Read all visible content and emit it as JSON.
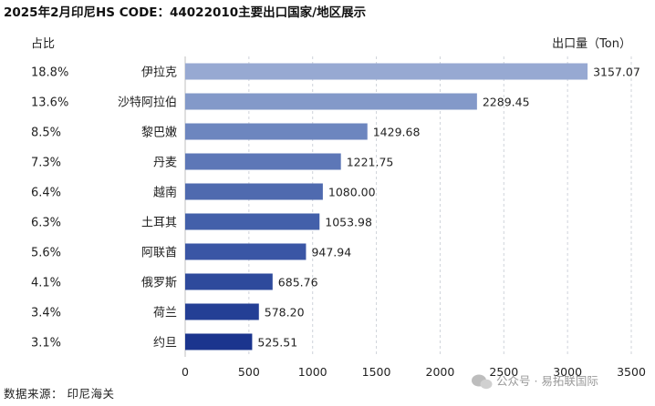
{
  "chart_data": {
    "type": "bar",
    "orientation": "horizontal",
    "title": "2025年2月印尼HS CODE：44022010主要出口国家/地区展示",
    "share_header": "占比",
    "value_header": "出口量（Ton）",
    "categories": [
      "伊拉克",
      "沙特阿拉伯",
      "黎巴嫩",
      "丹麦",
      "越南",
      "土耳其",
      "阿联酋",
      "俄罗斯",
      "荷兰",
      "约旦"
    ],
    "values": [
      3157.07,
      2289.45,
      1429.68,
      1221.75,
      1080.0,
      1053.98,
      947.94,
      685.76,
      578.2,
      525.51
    ],
    "value_labels": [
      "3157.07",
      "2289.45",
      "1429.68",
      "1221.75",
      "1080.00",
      "1053.98",
      "947.94",
      "685.76",
      "578.20",
      "525.51"
    ],
    "shares": [
      "18.8%",
      "13.6%",
      "8.5%",
      "7.3%",
      "6.4%",
      "6.3%",
      "5.6%",
      "4.1%",
      "3.4%",
      "3.1%"
    ],
    "bar_colors": [
      "#97a9d2",
      "#8399c9",
      "#6d86bf",
      "#5d77b7",
      "#4f6aaf",
      "#4360aa",
      "#3a56a5",
      "#2e4a9c",
      "#243f95",
      "#1b358e"
    ],
    "xlim": [
      0,
      3500
    ],
    "xticks": [
      "0",
      "500",
      "1000",
      "1500",
      "2000",
      "2500",
      "3000",
      "3500"
    ],
    "grid": true
  },
  "footer": {
    "source": "数据来源：  印尼海关",
    "watermark": "公众号 · 易拓联国际"
  }
}
